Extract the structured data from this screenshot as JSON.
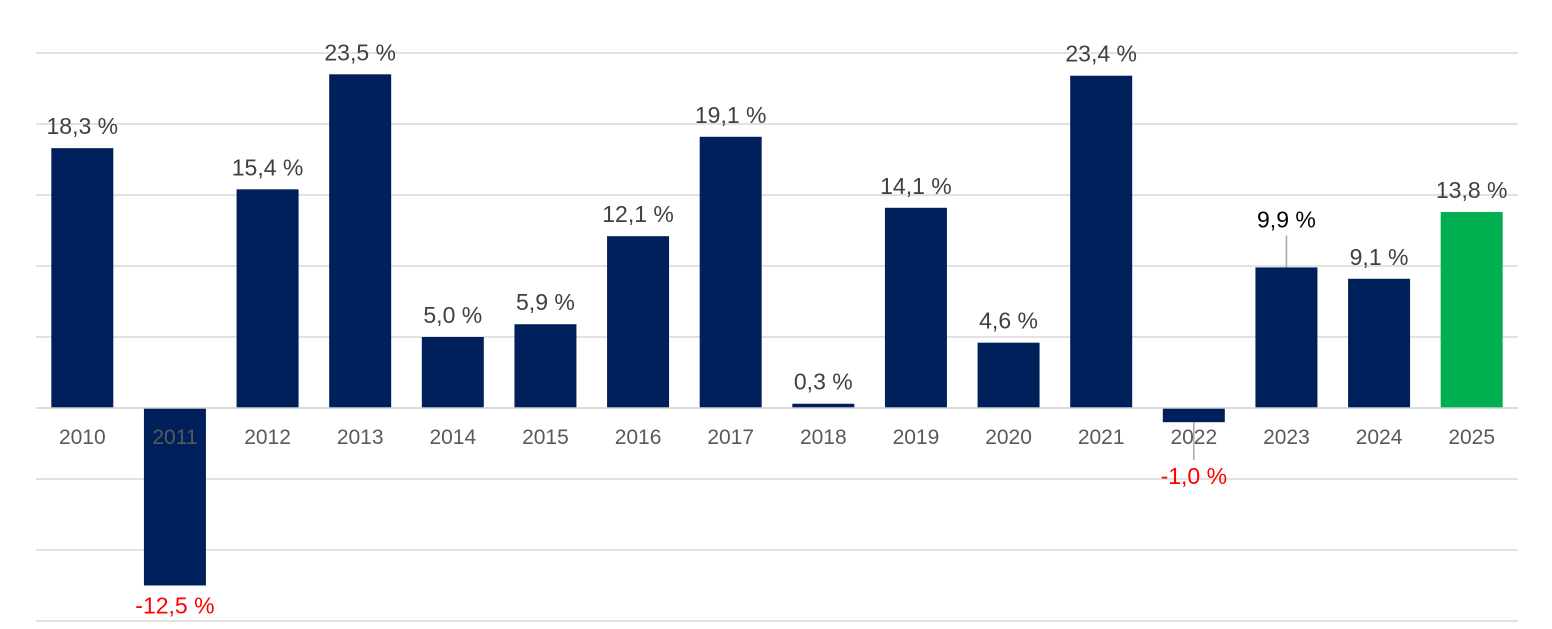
{
  "chart_data": {
    "type": "bar",
    "title": "",
    "xlabel": "",
    "ylabel": "",
    "ylim": [
      -20,
      25
    ],
    "grid": true,
    "categories": [
      "2010",
      "2011",
      "2012",
      "2013",
      "2014",
      "2015",
      "2016",
      "2017",
      "2018",
      "2019",
      "2020",
      "2021",
      "2022",
      "2023",
      "2024",
      "2025"
    ],
    "values": [
      18.3,
      -12.5,
      15.4,
      23.5,
      5.0,
      5.9,
      12.1,
      19.1,
      0.3,
      14.1,
      4.6,
      23.4,
      -1.0,
      9.9,
      9.1,
      13.8
    ],
    "data_labels": [
      "18,3 %",
      "-12,5 %",
      "15,4 %",
      "23,5 %",
      "5,0 %",
      "5,9 %",
      "12,1 %",
      "19,1 %",
      "0,3 %",
      "14,1 %",
      "4,6 %",
      "23,4 %",
      "-1,0 %",
      "9,9 %",
      "9,1 %",
      "13,8 %"
    ],
    "colors": {
      "bar": "#00205b",
      "highlight_bar": "#00b050",
      "negative_label": "#ff0000",
      "label": "#404040",
      "axis_text": "#595959",
      "grid": "#d9d9d9"
    },
    "highlight_category": "2025"
  }
}
